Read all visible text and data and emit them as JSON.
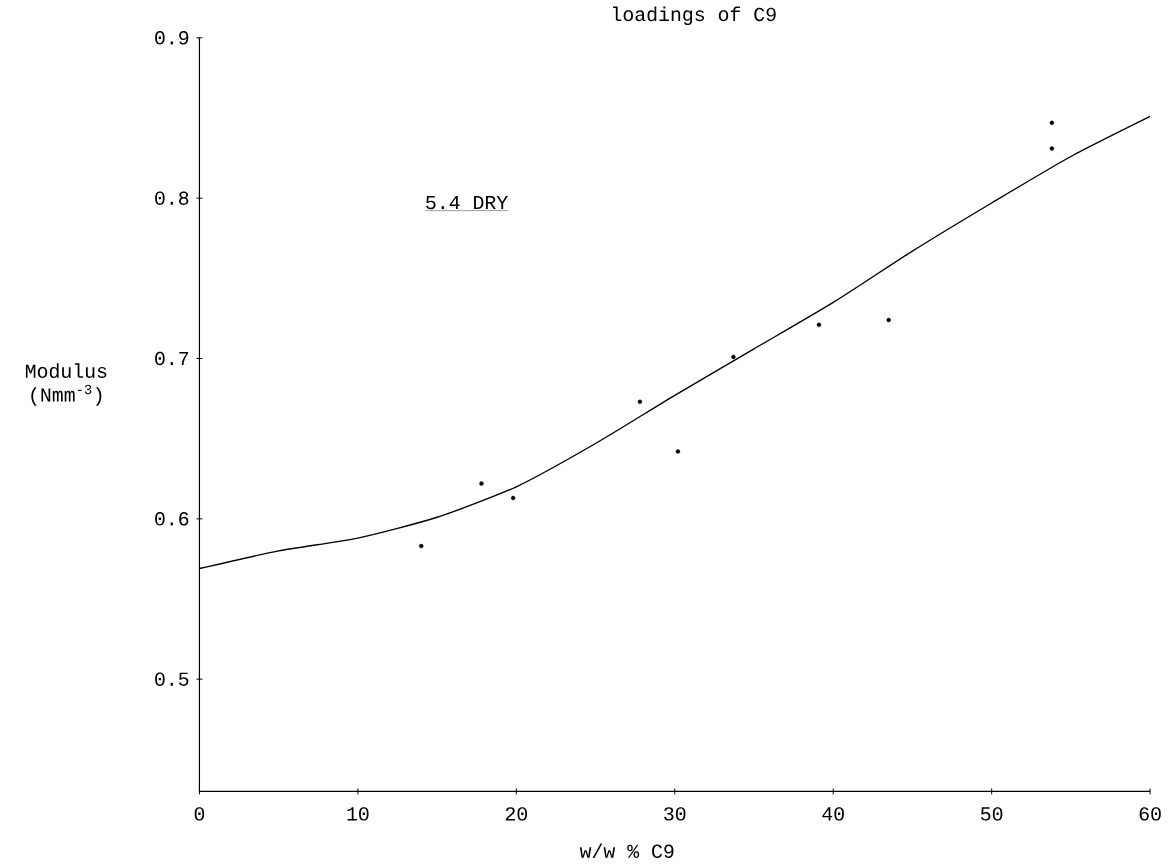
{
  "chart_data": {
    "type": "scatter",
    "title": "loadings of C9",
    "xlabel": "w/w % C9",
    "ylabel": "Modulus (Nmm$^{-3}$)",
    "annotations": [
      "5.4 DRY"
    ],
    "series": [
      {
        "color": "#000000",
        "marker": "circle",
        "x": [
          14.0,
          17.8,
          19.8,
          27.8,
          30.2,
          33.7,
          39.1,
          43.5,
          53.8,
          53.8
        ],
        "values": [
          0.583,
          0.622,
          0.613,
          0.673,
          0.642,
          0.701,
          0.721,
          0.724,
          0.847,
          0.831
        ]
      },
      {
        "type": "line",
        "color": "#000000",
        "marker": "none",
        "line_style": "solid",
        "x": [
          0,
          5,
          10,
          15,
          20,
          25,
          30,
          35,
          40,
          45,
          50,
          55,
          60
        ],
        "values": [
          0.569,
          0.58,
          0.588,
          0.601,
          0.62,
          0.647,
          0.677,
          0.706,
          0.735,
          0.767,
          0.797,
          0.826,
          0.851
        ]
      }
    ],
    "xlim": [
      0,
      60
    ],
    "ylim": [
      0.43,
      0.9
    ],
    "xticks": [
      0,
      10,
      20,
      30,
      40,
      50,
      60
    ],
    "yticks": [
      0.5,
      0.6,
      0.7,
      0.8,
      0.9
    ],
    "grid": false
  }
}
